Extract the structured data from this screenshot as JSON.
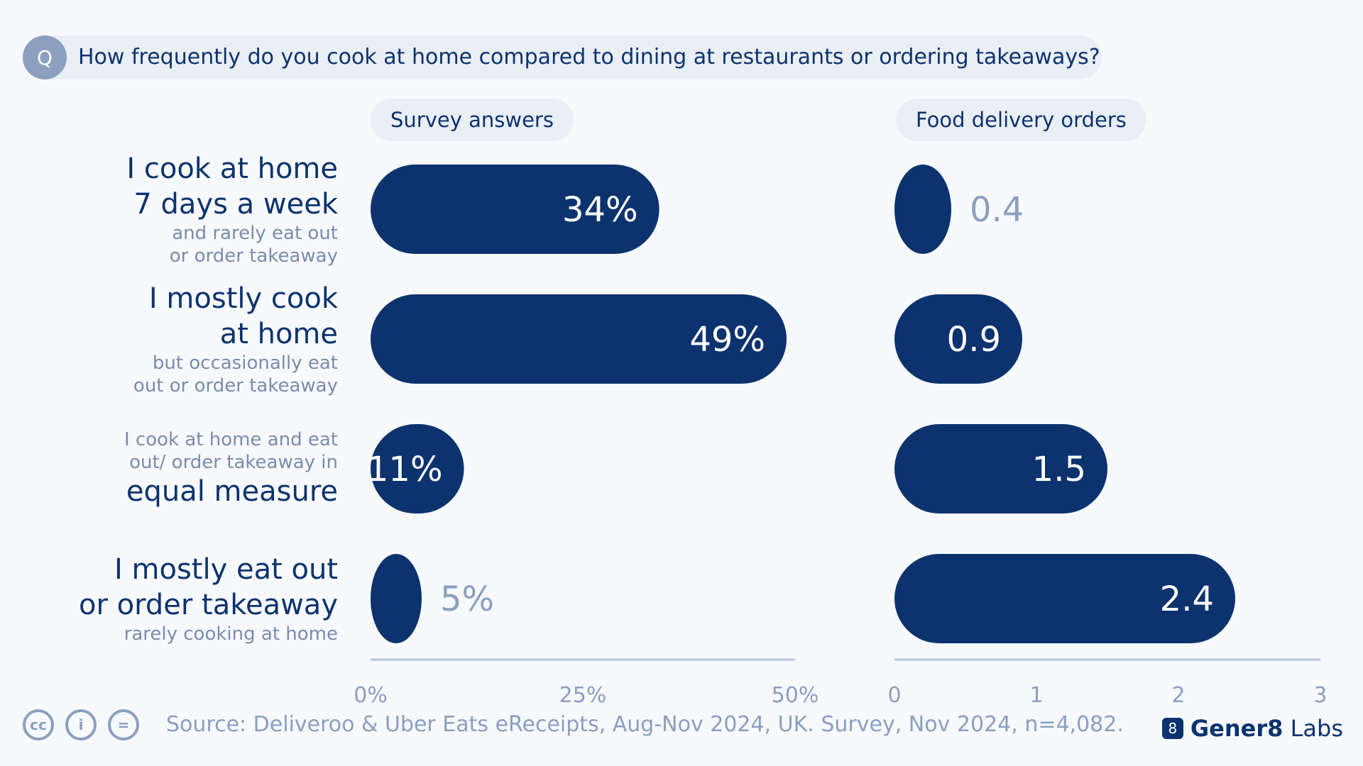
{
  "question": {
    "badge": "Q",
    "text": "How frequently do you cook at home compared to dining at restaurants or ordering takeaways?"
  },
  "panels": {
    "survey_title": "Survey answers",
    "delivery_title": "Food delivery orders"
  },
  "rows": [
    {
      "main": "I cook at home\n7 days a week",
      "sub": "and rarely eat out\nor order takeaway",
      "sub_first": false
    },
    {
      "main": "I mostly cook\nat home",
      "sub": "but occasionally eat\nout or order takeaway",
      "sub_first": false
    },
    {
      "main": "equal measure",
      "sub": "I cook at home and eat\nout/ order takeaway in",
      "sub_first": true
    },
    {
      "main": "I mostly eat out\nor order takeaway",
      "sub": "rarely cooking at home",
      "sub_first": false
    }
  ],
  "chart_data": [
    {
      "type": "bar",
      "orientation": "horizontal",
      "title": "Survey answers",
      "categories": [
        "I cook at home 7 days a week",
        "I mostly cook at home",
        "equal measure",
        "I mostly eat out or order takeaway"
      ],
      "values": [
        34,
        49,
        11,
        5
      ],
      "value_labels": [
        "34%",
        "49%",
        "11%",
        "5%"
      ],
      "xlim": [
        0,
        50
      ],
      "ticks": [
        0,
        25,
        50
      ],
      "tick_labels": [
        "0%",
        "25%",
        "50%"
      ]
    },
    {
      "type": "bar",
      "orientation": "horizontal",
      "title": "Food delivery orders",
      "categories": [
        "I cook at home 7 days a week",
        "I mostly cook at home",
        "equal measure",
        "I mostly eat out or order takeaway"
      ],
      "values": [
        0.4,
        0.9,
        1.5,
        2.4
      ],
      "value_labels": [
        "0.4",
        "0.9",
        "1.5",
        "2.4"
      ],
      "xlim": [
        0,
        3
      ],
      "ticks": [
        0,
        1,
        2,
        3
      ],
      "tick_labels": [
        "0",
        "1",
        "2",
        "3"
      ]
    }
  ],
  "colors": {
    "bar": "#0c336e",
    "label_inside": "#ffffff",
    "label_outside": "#8b9fbf",
    "axis": "#b8c4d8",
    "tick": "#8b9fbf"
  },
  "footer": {
    "icons": [
      "cc-icon",
      "attribution-icon",
      "no-derivatives-icon"
    ],
    "icon_glyphs": [
      "cc",
      "i",
      "="
    ],
    "source": "Source: Deliveroo & Uber Eats eReceipts, Aug-Nov 2024, UK. Survey, Nov 2024, n=4,082.",
    "brand_logo": "8",
    "brand_bold": "Gener8",
    "brand_rest": "Labs"
  }
}
